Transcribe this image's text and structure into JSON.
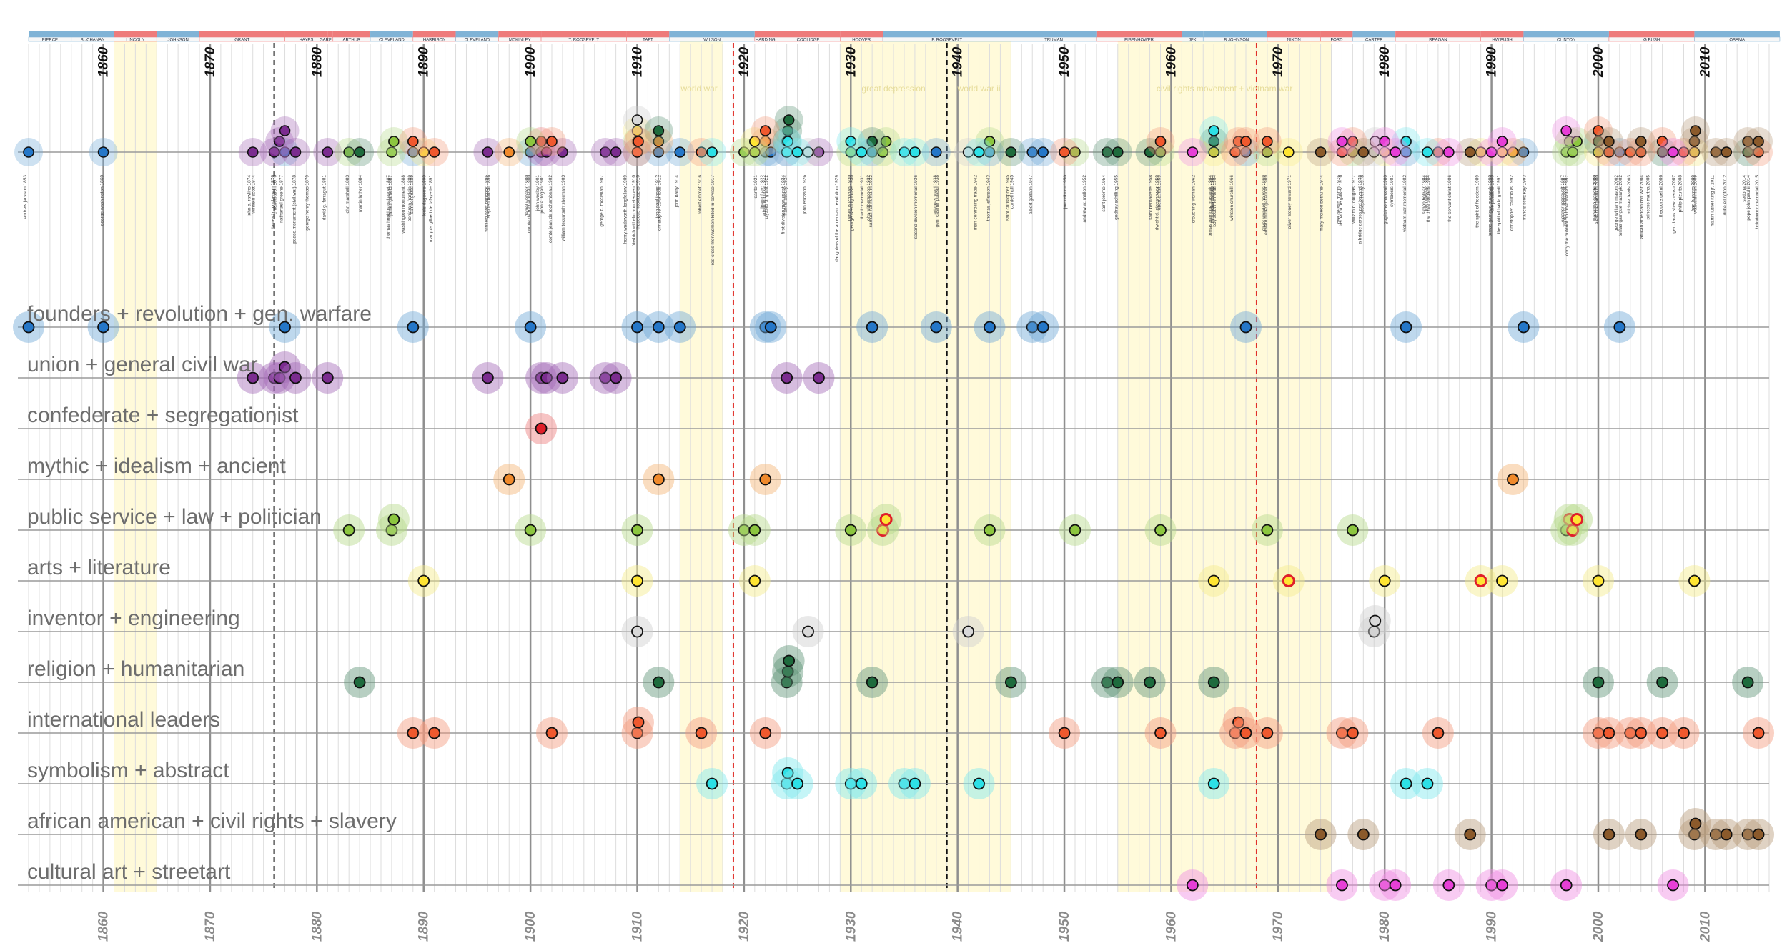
{
  "chart_data": {
    "type": "scatter",
    "xlim": [
      1853,
      2016
    ],
    "tick_years": [
      1860,
      1870,
      1880,
      1890,
      1900,
      1910,
      1920,
      1930,
      1940,
      1950,
      1960,
      1970,
      1980,
      1990,
      2000,
      2010
    ],
    "grid": true,
    "presidents": [
      {
        "name": "PIERCE",
        "start": 1853,
        "end": 1857,
        "party": "D"
      },
      {
        "name": "BUCHANAN",
        "start": 1857,
        "end": 1861,
        "party": "D"
      },
      {
        "name": "LINCOLN",
        "start": 1861,
        "end": 1865,
        "party": "R"
      },
      {
        "name": "JOHNSON",
        "start": 1865,
        "end": 1869,
        "party": "D"
      },
      {
        "name": "GRANT",
        "start": 1869,
        "end": 1877,
        "party": "R"
      },
      {
        "name": "HAYES",
        "start": 1877,
        "end": 1881,
        "party": "R"
      },
      {
        "name": "GARFIELD",
        "start": 1881,
        "end": 1881.5,
        "party": "R"
      },
      {
        "name": "ARTHUR",
        "start": 1881.5,
        "end": 1885,
        "party": "R"
      },
      {
        "name": "CLEVELAND",
        "start": 1885,
        "end": 1889,
        "party": "D"
      },
      {
        "name": "HARRISON",
        "start": 1889,
        "end": 1893,
        "party": "R"
      },
      {
        "name": "CLEVELAND",
        "start": 1893,
        "end": 1897,
        "party": "D"
      },
      {
        "name": "MCKINLEY",
        "start": 1897,
        "end": 1901,
        "party": "R"
      },
      {
        "name": "T. ROOSEVELT",
        "start": 1901,
        "end": 1909,
        "party": "R"
      },
      {
        "name": "TAFT",
        "start": 1909,
        "end": 1913,
        "party": "R"
      },
      {
        "name": "WILSON",
        "start": 1913,
        "end": 1921,
        "party": "D"
      },
      {
        "name": "HARDING",
        "start": 1921,
        "end": 1923,
        "party": "R"
      },
      {
        "name": "COOLIDGE",
        "start": 1923,
        "end": 1929,
        "party": "R"
      },
      {
        "name": "HOOVER",
        "start": 1929,
        "end": 1933,
        "party": "R"
      },
      {
        "name": "F. ROOSEVELT",
        "start": 1933,
        "end": 1945,
        "party": "D"
      },
      {
        "name": "TRUMAN",
        "start": 1945,
        "end": 1953,
        "party": "D"
      },
      {
        "name": "EISENHOWER",
        "start": 1953,
        "end": 1961,
        "party": "R"
      },
      {
        "name": "JFK",
        "start": 1961,
        "end": 1963,
        "party": "D"
      },
      {
        "name": "LB JOHNSON",
        "start": 1963,
        "end": 1969,
        "party": "D"
      },
      {
        "name": "NIXON",
        "start": 1969,
        "end": 1974,
        "party": "R"
      },
      {
        "name": "FORD",
        "start": 1974,
        "end": 1977,
        "party": "R"
      },
      {
        "name": "CARTER",
        "start": 1977,
        "end": 1981,
        "party": "D"
      },
      {
        "name": "REAGAN",
        "start": 1981,
        "end": 1989,
        "party": "R"
      },
      {
        "name": "HW BUSH",
        "start": 1989,
        "end": 1993,
        "party": "R"
      },
      {
        "name": "CLINTON",
        "start": 1993,
        "end": 2001,
        "party": "D"
      },
      {
        "name": "G BUSH",
        "start": 2001,
        "end": 2009,
        "party": "R"
      },
      {
        "name": "OBAMA",
        "start": 2009,
        "end": 2017,
        "party": "D"
      }
    ],
    "eras": [
      {
        "label": "",
        "start": 1861,
        "end": 1865
      },
      {
        "label": "world war i",
        "start": 1914,
        "end": 1918
      },
      {
        "label": "great depression",
        "start": 1929,
        "end": 1939
      },
      {
        "label": "world war ii",
        "start": 1939,
        "end": 1945
      },
      {
        "label": "civil rights movement + vietnam war",
        "start": 1955,
        "end": 1975
      }
    ],
    "dashed_lines": [
      {
        "year": 1876,
        "color": "#111111"
      },
      {
        "year": 1919,
        "color": "#e0302a"
      },
      {
        "year": 1939,
        "color": "#111111"
      },
      {
        "year": 1968,
        "color": "#e0302a"
      }
    ],
    "memorials": [
      "andrew jackson 1853",
      "george washington 1860",
      "winfield scott 1874",
      "john a. rawlins 1874",
      "james b. mcpherson 1876",
      "emancipation 1876",
      "nathanael greene 1877",
      "peace monument (civil war) 1878",
      "george henry thomas 1879",
      "david g. farragut 1881",
      "john marshall 1883",
      "martin luther 1884",
      "thomas hopkins gallaudet 1887",
      "james garfield 1887",
      "washington monument 1888",
      "benjamin franklin 1889",
      "samuel gross 1889",
      "louis daguerre 1890",
      "marquis gilbert de lafayette 1891",
      "winfield scott hancock 1896",
      "stephen bonsal 1896",
      "daniel webster 1900",
      "comte de rochambeau 1900",
      "john a. logan 1901",
      "john wesley 1901",
      "comte jean de rochambeau 1902",
      "william tecumseh sherman 1903",
      "george b. mcclellan 1907",
      "henry wadsworth longfellow 1909",
      "thaddeus kosciuszko 1910",
      "friedrich wilhelm von steuben 1910",
      "john paul jones 1912",
      "christopher columbus 1912",
      "john barry 1914",
      "robert emmet 1916",
      "red cross men/women killed in service 1917",
      "first division monument 1924",
      "james buchanan 1930",
      "titanic memorial 1931",
      "john witherspoon 1932",
      "samuel hahnemann 1932",
      "second division memorial 1936",
      "daughters of the american revolution 1929",
      "francis asbury 1924",
      "ulysses s. grant 1922",
      "john ericsson 1926",
      "edmund burke 1922",
      "dante 1921",
      "joan of arc 1922",
      "artemas ward 1938",
      "gen. casimir pulaski 1938",
      "mahatma gandhi 2000",
      "albert gallatin 1947",
      "george westinghouse 1930",
      "saint jerome 1954",
      "andrew w. mellon 1952",
      "joe uriburu 1950",
      "saint christopher 1945",
      "thomas jefferson 1943",
      "cordell hull 1945",
      "man controlling trade 1942",
      "godfrey schilling 1955",
      "saint bernadette 1958",
      "dwight d. eisenhower 1959",
      "robert a. taft 1959",
      "crouching woman 1962",
      "tomas garrigue masaryk 1964",
      "john wesley 1964",
      "boy scout memorial 1964",
      "winston churchill 1966",
      "taras shevchenko 1964",
      "mary mcleod bethune 1974",
      "oliver wendell holmes 1969",
      "edward miner gallaudet 1969",
      "oliver stoney seward 1971",
      "jose de san martin 1976",
      "bernardo de galvez 1976",
      "william o. douglas 1977",
      "a bridge across and beyond 1978",
      "joseph henry 1978",
      "guglielmo marconi 1980",
      "symbiosis 1981",
      "vietnam war memorial 1982",
      "the three soldiers 1984",
      "simon bolivar 1984",
      "john wesley 1984",
      "the servant christ 1986",
      "the spirit of freedom 1989",
      "tomas garrigue masaryk 1990",
      "the possible 1990",
      "the spirit of haida gwaii 1991",
      "christopher columbus 1992",
      "francis scott key 1993",
      "eleanor roosevelt 1997",
      "franklin d. roosevelt 1997",
      "corry the outdoor on most wanted 1997",
      "mahatma gandhi 2000",
      "alexander pushkin 2000",
      "tomas garrigue masaryk 2002",
      "george william mason 2002",
      "michael lewis 2003",
      "african american civil war 2004",
      "princess martha 2005",
      "theodore gelmi 2006",
      "gen. taras shevchenko 2007",
      "philip pizutta 2008",
      "frog hunters 2009",
      "walt whitman 2009",
      "martin luther king jr. 2011",
      "duke ellington 2012",
      "pope john paul ii 2014",
      "sedona 2014",
      "holodomor memorial 2015"
    ],
    "series": [
      {
        "name": "founders + revolution + gen. warfare",
        "color": "#2577c8",
        "glow": "#6fa8d8",
        "x": [
          1853,
          1860,
          1877,
          1889,
          1900,
          1910,
          1912,
          1914,
          1922,
          1922.5,
          1932,
          1938,
          1943,
          1947,
          1948,
          1967,
          1982,
          1993,
          2002
        ]
      },
      {
        "name": "union + general civil war",
        "color": "#7b2c8f",
        "glow": "#a56bb8",
        "x": [
          1874,
          1876,
          1876.5,
          1877,
          1878,
          1881,
          1896,
          1901,
          1901.5,
          1903,
          1907,
          1908,
          1924,
          1927
        ]
      },
      {
        "name": "confederate + segregationist",
        "color": "#e01f2a",
        "glow": "#ee7d7d",
        "x": [
          1901
        ]
      },
      {
        "name": "mythic + idealism + ancient",
        "color": "#f08a2c",
        "glow": "#f4b374",
        "x": [
          1898,
          1912,
          1922,
          1992
        ]
      },
      {
        "name": "public service + law + politician",
        "color": "#8cc63f",
        "glow": "#b5d98a",
        "x": [
          1883,
          1887,
          1887.2,
          1900,
          1910,
          1920,
          1921,
          1930,
          1933,
          1933.3,
          1943,
          1951,
          1959,
          1969,
          1977,
          1997,
          1997.3,
          1997.6,
          1998
        ]
      },
      {
        "name": "arts + literature",
        "color": "#ffe533",
        "glow": "#f5ea8a",
        "x": [
          1890,
          1910,
          1921,
          1964,
          1971,
          1980,
          1989,
          1991,
          2000,
          2009
        ]
      },
      {
        "name": "inventor + engineering",
        "color": "#d8d8d8",
        "glow": "#cfcfcf",
        "x": [
          1910,
          1926,
          1941,
          1979,
          1979.1
        ]
      },
      {
        "name": "religion + humanitarian",
        "color": "#1e6b3d",
        "glow": "#5f9478",
        "x": [
          1884,
          1912,
          1924,
          1924.1,
          1924.2,
          1932,
          1945,
          1954,
          1955,
          1958,
          1964,
          2000,
          2006,
          2014
        ]
      },
      {
        "name": "international leaders",
        "color": "#f0592e",
        "glow": "#f39a7c",
        "x": [
          1889,
          1891,
          1902,
          1910,
          1910.1,
          1916,
          1922,
          1950,
          1959,
          1966,
          1966.3,
          1967,
          1969,
          1976,
          1977,
          1985,
          2000,
          2001,
          2003,
          2004,
          2006,
          2008,
          2015
        ]
      },
      {
        "name": "symbolism + abstract",
        "color": "#2de0e6",
        "glow": "#7ee9ee",
        "x": [
          1917,
          1924,
          1924.1,
          1925,
          1930,
          1931,
          1935,
          1936,
          1942,
          1964,
          1982,
          1984
        ]
      },
      {
        "name": "african american + civil rights + slavery",
        "color": "#8b5a2b",
        "glow": "#b79b7b",
        "x": [
          1974,
          1978,
          1988,
          2001,
          2004,
          2009,
          2009.1,
          2011,
          2012,
          2014,
          2015
        ]
      },
      {
        "name": "cultural art + streetart",
        "color": "#e73fd7",
        "glow": "#ef8be3",
        "x": [
          1962,
          1976,
          1980,
          1981,
          1986,
          1990,
          1991,
          1997,
          2007
        ]
      }
    ]
  }
}
